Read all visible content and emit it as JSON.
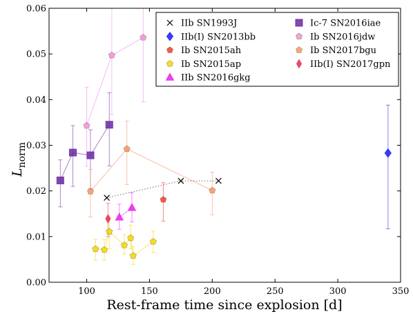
{
  "chart_data": {
    "type": "scatter",
    "title": "",
    "xlabel": "Rest-frame time since explosion [d]",
    "ylabel": "L",
    "ylabel_sub": "norm",
    "xlim": [
      70,
      350
    ],
    "ylim": [
      0,
      0.06
    ],
    "x_ticks": [
      "100",
      "150",
      "200",
      "250",
      "300",
      "350"
    ],
    "x_tick_values": [
      100,
      150,
      200,
      250,
      300,
      350
    ],
    "y_ticks": [
      "0.00",
      "0.01",
      "0.02",
      "0.03",
      "0.04",
      "0.05",
      "0.06"
    ],
    "y_tick_values": [
      0,
      0.01,
      0.02,
      0.03,
      0.04,
      0.05,
      0.06
    ],
    "grid": false,
    "legend_position": "top-right",
    "series": [
      {
        "name": "IIb SN1993J",
        "marker": "x",
        "color": "#000000",
        "line": "dotted",
        "x": [
          116,
          175,
          205
        ],
        "y": [
          0.0185,
          0.0222,
          0.0222
        ],
        "yerr": [
          null,
          null,
          null
        ]
      },
      {
        "name": "IIb(I) SN2013bb",
        "marker": "diamond",
        "color": "#1f1ff0",
        "line": "solid",
        "x": [
          340
        ],
        "y": [
          0.0283
        ],
        "yerr": [
          [
            0.0117,
            0.0388
          ]
        ]
      },
      {
        "name": "Ib SN2015ah",
        "marker": "pentagon",
        "color": "#f03030",
        "line": "solid",
        "x": [
          161
        ],
        "y": [
          0.0181
        ],
        "yerr": [
          [
            0.0134,
            0.0218
          ]
        ]
      },
      {
        "name": "Ib SN2015ap",
        "marker": "pentagon",
        "color": "#f2d400",
        "line": "solid",
        "x": [
          107,
          114,
          118,
          130,
          135,
          137,
          153
        ],
        "y": [
          0.0073,
          0.0071,
          0.0111,
          0.0081,
          0.0097,
          0.0058,
          0.0089
        ],
        "yerr": [
          [
            0.0048,
            0.0094
          ],
          [
            0.0048,
            0.0094
          ],
          [
            0.0073,
            0.0143
          ],
          [
            0.0062,
            0.0104
          ],
          [
            0.0073,
            0.0125
          ],
          [
            0.0039,
            0.0078
          ],
          [
            0.0065,
            0.0112
          ]
        ]
      },
      {
        "name": "IIb SN2016gkg",
        "marker": "triangle",
        "color": "#e830e8",
        "line": "solid",
        "x": [
          126,
          136
        ],
        "y": [
          0.0142,
          0.0163
        ],
        "yerr": [
          [
            0.0116,
            0.0171
          ],
          [
            0.0132,
            0.0196
          ]
        ]
      },
      {
        "name": "Ic-7 SN2016iae",
        "marker": "square",
        "color": "#6a2aa0",
        "line": "solid",
        "x": [
          79,
          89,
          103,
          118
        ],
        "y": [
          0.0223,
          0.0284,
          0.0278,
          0.0345
        ],
        "yerr": [
          [
            0.0165,
            0.0268
          ],
          [
            0.021,
            0.0343
          ],
          [
            0.0205,
            0.0334
          ],
          [
            0.0255,
            0.0415
          ]
        ]
      },
      {
        "name": "Ib SN2016jdw",
        "marker": "pentagon",
        "color": "#ee88ee",
        "line": "solid",
        "x": [
          100,
          120,
          145
        ],
        "y": [
          0.0343,
          0.0497,
          0.0536
        ],
        "yerr": [
          [
            0.0254,
            0.0427
          ],
          [
            0.0367,
            0.06
          ],
          [
            0.0395,
            0.06
          ]
        ]
      },
      {
        "name": "Ib SN2017bgu",
        "marker": "pentagon",
        "color": "#f4906a",
        "line": "solid",
        "x": [
          103,
          132,
          200
        ],
        "y": [
          0.0199,
          0.0292,
          0.0201
        ],
        "yerr": [
          [
            0.0143,
            0.0247
          ],
          [
            0.0214,
            0.0353
          ],
          [
            0.0148,
            0.0241
          ]
        ]
      },
      {
        "name": "IIb(I) SN2017gpn",
        "marker": "thin-diamond",
        "color": "#e83a5a",
        "line": "solid",
        "x": [
          117
        ],
        "y": [
          0.0139
        ],
        "yerr": [
          [
            0.01,
            0.0173
          ]
        ]
      }
    ]
  }
}
